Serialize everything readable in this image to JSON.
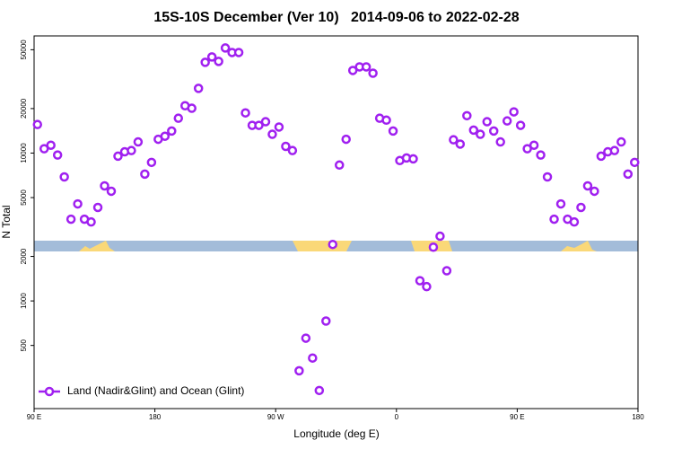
{
  "chart_data": {
    "type": "scatter",
    "title": "15S-10S December (Ver 10)   2014-09-06 to 2022-02-28",
    "x_label": "Longitude (deg E)",
    "y_label": "N Total",
    "log_y": true,
    "xlim": [
      90,
      540
    ],
    "xticks": [
      {
        "value": 90,
        "label": "90 E"
      },
      180,
      {
        "value": 270,
        "label": "90 W"
      },
      {
        "value": 360,
        "label": "0"
      },
      {
        "value": 450,
        "label": "90 E"
      },
      {
        "value": 540,
        "label": "180"
      }
    ],
    "ylim": [
      187,
      62000
    ],
    "yticks": [
      500,
      1000,
      2000,
      5000,
      10000,
      20000,
      50000
    ],
    "legend": "bottom-left",
    "x": [
      92.5,
      97.5,
      102.5,
      107.5,
      112.5,
      117.5,
      122.5,
      127.5,
      132.5,
      137.5,
      142.5,
      147.5,
      152.5,
      157.5,
      162.5,
      167.5,
      172.5,
      177.5,
      182.5,
      187.5,
      192.5,
      197.5,
      202.5,
      207.5,
      212.5,
      217.5,
      222.5,
      227.5,
      232.5,
      237.5,
      242.5,
      247.5,
      252.5,
      257.5,
      262.5,
      267.5,
      272.5,
      277.5,
      282.5,
      287.5,
      292.5,
      297.5,
      302.5,
      307.5,
      312.5,
      317.5,
      322.5,
      327.5,
      332.5,
      337.5,
      342.5,
      347.5,
      352.5,
      357.5,
      362.5,
      367.5,
      372.5,
      377.5,
      382.5,
      387.5,
      392.5,
      397.5,
      402.5,
      407.5,
      412.5,
      417.5,
      422.5,
      427.5,
      432.5,
      437.5,
      442.5,
      447.5,
      452.5,
      457.5,
      462.5,
      467.5,
      472.5,
      477.5,
      482.5,
      487.5,
      492.5,
      497.5,
      502.5,
      507.5,
      512.5,
      517.5,
      522.5,
      527.5,
      532.5,
      537.5
    ],
    "series": [
      {
        "name": "Land (Nadir&Glint) and Ocean (Glint)",
        "color": "#a020f0",
        "values": [
          15600,
          10700,
          11300,
          9700,
          6900,
          3570,
          4530,
          3570,
          3420,
          4290,
          6000,
          5520,
          9530,
          10200,
          10400,
          11900,
          7210,
          8650,
          12400,
          13000,
          14100,
          17200,
          20900,
          20100,
          27400,
          41100,
          44700,
          41700,
          51400,
          47900,
          47900,
          18700,
          15400,
          15400,
          16300,
          13400,
          15000,
          11100,
          10400,
          337,
          560,
          411,
          248,
          731,
          2410,
          8300,
          12400,
          36200,
          38300,
          38300,
          34700,
          17200,
          16700,
          14100,
          8900,
          9270,
          9140,
          1370,
          1250,
          2310,
          2740,
          1600,
          12300,
          11500,
          17900,
          14300,
          13400,
          16300,
          14100,
          11900,
          16500,
          19000,
          15400,
          10700,
          11300,
          9700,
          6900,
          3570,
          4530,
          3570,
          3420,
          4290,
          6000,
          5520,
          9530,
          10200,
          10400,
          11900,
          7210,
          8650
        ]
      }
    ]
  }
}
